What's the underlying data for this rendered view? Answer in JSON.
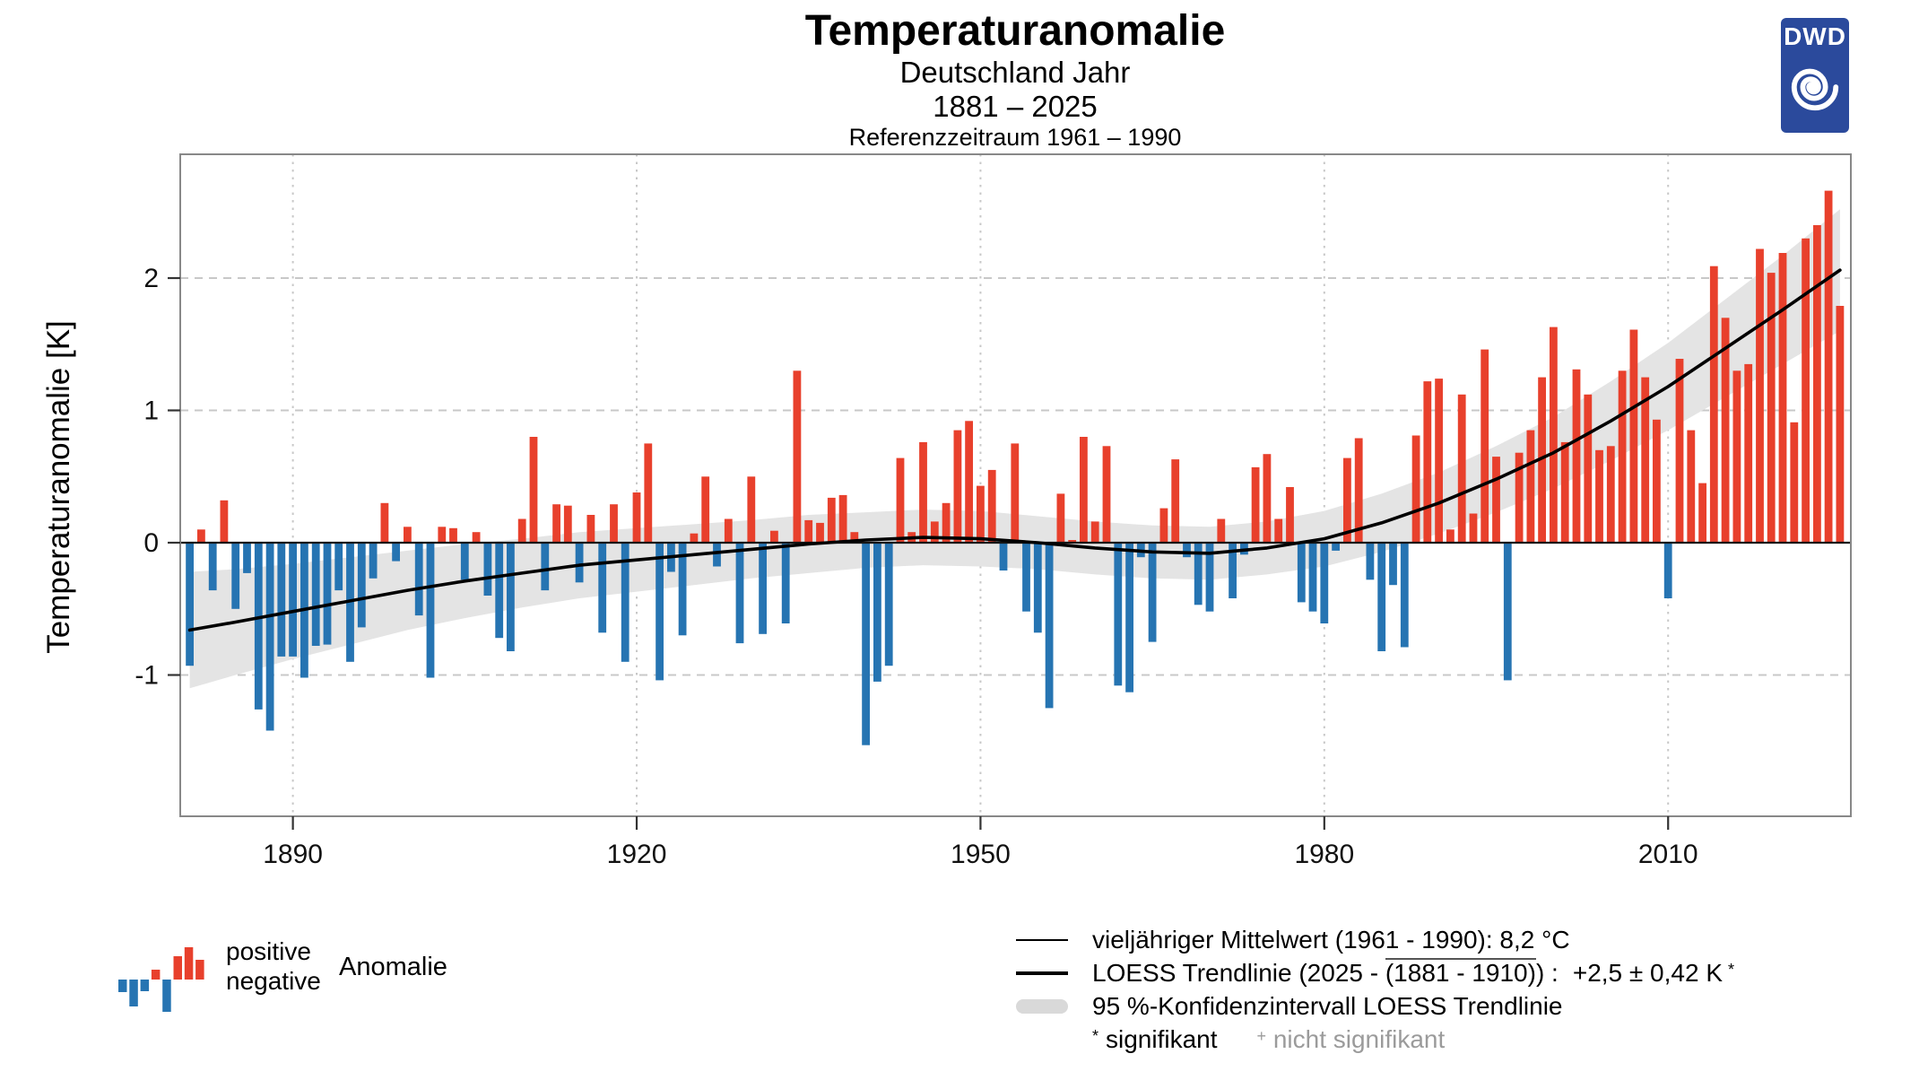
{
  "header": {
    "title": "Temperaturanomalie",
    "subtitle": "Deutschland Jahr",
    "period": "1881 – 2025",
    "reference": "Referenzzeitraum 1961 – 1990"
  },
  "logo": {
    "text": "DWD"
  },
  "colors": {
    "positive": "#E8402C",
    "negative": "#2674B2",
    "band": "#E4E4E4",
    "grid": "#C8C8C8",
    "frame": "#888888",
    "trend": "#000000",
    "mean_line": "#151515",
    "logo_blue": "#2B4A9C",
    "gray_text": "#9B9B9B"
  },
  "legend_left": {
    "positive": "positive",
    "negative": "negative",
    "anomalie": "Anomalie",
    "mini_bars": [
      -14,
      -30,
      -13,
      11,
      -36,
      26,
      36,
      22
    ]
  },
  "legend_right": {
    "mean_label": "vieljähriger Mittelwert (1961 - 1990): 8,2 °C",
    "loess_pre": "LOESS Trendlinie (2025 - ",
    "loess_overline": "(1881 - 1910)",
    "loess_close": ") :",
    "loess_value": "+2,5 ± 0,42 K",
    "star": "*",
    "ci_label": "95 %-Konfidenzintervall LOESS Trendlinie",
    "sig_star": "*",
    "sig_label": "signifikant",
    "nsig_marker": "+",
    "nsig_label": "nicht signifikant"
  },
  "chart_data": {
    "type": "bar",
    "title": "Temperaturanomalie Deutschland Jahr 1881 - 2025",
    "ylabel": "Temperaturanomalie [K]",
    "xlabel": "",
    "unit": "K",
    "reference_period_mean": "8,2 °C",
    "start_year": 1881,
    "end_year": 2025,
    "y_ticks": [
      2,
      1,
      0,
      -1
    ],
    "x_ticks": [
      1890,
      1920,
      1950,
      1980,
      2010
    ],
    "ylim": [
      -2.05,
      2.94
    ],
    "values": [
      -0.93,
      0.1,
      -0.36,
      0.32,
      -0.5,
      -0.23,
      -1.26,
      -1.42,
      -0.86,
      -0.86,
      -1.02,
      -0.78,
      -0.77,
      -0.36,
      -0.9,
      -0.64,
      -0.27,
      0.3,
      -0.14,
      0.12,
      -0.55,
      -1.02,
      0.12,
      0.11,
      -0.28,
      0.08,
      -0.4,
      -0.72,
      -0.82,
      0.18,
      0.8,
      -0.36,
      0.29,
      0.28,
      -0.3,
      0.21,
      -0.68,
      0.29,
      -0.9,
      0.38,
      0.75,
      -1.04,
      -0.22,
      -0.7,
      0.07,
      0.5,
      -0.18,
      0.18,
      -0.76,
      0.5,
      -0.69,
      0.09,
      -0.61,
      1.3,
      0.17,
      0.15,
      0.34,
      0.36,
      0.08,
      -1.53,
      -1.05,
      -0.93,
      0.64,
      0.08,
      0.76,
      0.16,
      0.3,
      0.85,
      0.92,
      0.43,
      0.55,
      -0.21,
      0.75,
      -0.52,
      -0.68,
      -1.25,
      0.37,
      0.02,
      0.8,
      0.16,
      0.73,
      -1.08,
      -1.13,
      -0.11,
      -0.75,
      0.26,
      0.63,
      -0.11,
      -0.47,
      -0.52,
      0.18,
      -0.42,
      -0.09,
      0.57,
      0.67,
      0.18,
      0.42,
      -0.45,
      -0.52,
      -0.61,
      -0.06,
      0.64,
      0.79,
      -0.28,
      -0.82,
      -0.32,
      -0.79,
      0.81,
      1.22,
      1.24,
      0.1,
      1.12,
      0.22,
      1.46,
      0.65,
      -1.04,
      0.68,
      0.85,
      1.25,
      1.63,
      0.76,
      1.31,
      1.12,
      0.7,
      0.73,
      1.3,
      1.61,
      1.25,
      0.93,
      -0.42,
      1.39,
      0.85,
      0.45,
      2.09,
      1.7,
      1.3,
      1.35,
      2.22,
      2.04,
      2.19,
      0.91,
      2.3,
      2.4,
      2.66,
      1.79
    ],
    "trend": {
      "x": [
        1881,
        1885,
        1890,
        1895,
        1900,
        1905,
        1910,
        1915,
        1920,
        1925,
        1930,
        1935,
        1940,
        1945,
        1950,
        1955,
        1960,
        1965,
        1970,
        1975,
        1980,
        1985,
        1990,
        1995,
        2000,
        2005,
        2010,
        2015,
        2020,
        2025
      ],
      "y": [
        -0.66,
        -0.6,
        -0.52,
        -0.44,
        -0.36,
        -0.29,
        -0.23,
        -0.17,
        -0.13,
        -0.09,
        -0.05,
        -0.01,
        0.02,
        0.04,
        0.03,
        0.0,
        -0.04,
        -0.07,
        -0.08,
        -0.04,
        0.03,
        0.15,
        0.3,
        0.48,
        0.68,
        0.92,
        1.18,
        1.47,
        1.76,
        2.06
      ],
      "halfwidth": [
        0.44,
        0.4,
        0.36,
        0.33,
        0.3,
        0.28,
        0.26,
        0.25,
        0.24,
        0.23,
        0.22,
        0.22,
        0.21,
        0.21,
        0.21,
        0.2,
        0.2,
        0.2,
        0.2,
        0.2,
        0.21,
        0.22,
        0.23,
        0.25,
        0.27,
        0.3,
        0.33,
        0.37,
        0.41,
        0.46
      ]
    }
  }
}
